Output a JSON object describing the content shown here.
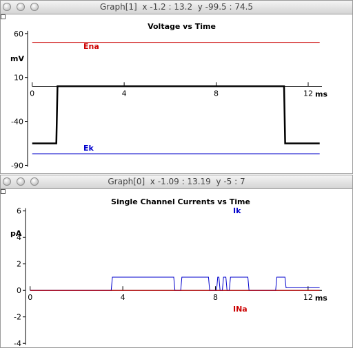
{
  "windows": [
    {
      "title_text": "Graph[1]  x -1.2 : 13.2  y -99.5 : 74.5",
      "chart_data": {
        "type": "line",
        "title": "Voltage vs Time",
        "xlabel": "ms",
        "ylabel": "mV",
        "xlim": [
          -0.2,
          12.6
        ],
        "ylim": [
          -92,
          63
        ],
        "xticks": [
          0,
          4,
          8,
          12
        ],
        "xtick_labels": [
          "0",
          "4",
          "8",
          "12"
        ],
        "yticks": [
          60,
          10,
          -40,
          -90
        ],
        "ytick_labels": [
          "60",
          "10",
          "-40",
          "-90"
        ],
        "series": [
          {
            "name": "Ena",
            "color": "#cc0000",
            "x": [
              0,
              12.5
            ],
            "y": [
              50,
              50
            ]
          },
          {
            "name": "Ek",
            "color": "#0000cc",
            "x": [
              0,
              12.5
            ],
            "y": [
              -77,
              -77
            ]
          },
          {
            "name": "",
            "color": "#000000",
            "x": [
              0,
              1.05,
              1.1,
              10.95,
              11.0,
              12.5
            ],
            "y": [
              -65,
              -65,
              0,
              0,
              -65,
              -65
            ]
          }
        ]
      }
    },
    {
      "title_text": "Graph[0]  x -1.09 : 13.19  y -5 : 7",
      "chart_data": {
        "type": "line",
        "title": "Single Channel Currents vs Time",
        "xlabel": "ms",
        "ylabel": "pA",
        "xlim": [
          -0.2,
          12.6
        ],
        "ylim": [
          -4.3,
          6.4
        ],
        "xticks": [
          0,
          4,
          8,
          12
        ],
        "xtick_labels": [
          "0",
          "4",
          "8",
          "12"
        ],
        "yticks": [
          6,
          4,
          2,
          0,
          -2,
          -4
        ],
        "ytick_labels": [
          "6",
          "4",
          "2",
          "0",
          "-2",
          "-4"
        ],
        "series": [
          {
            "name": "Ik",
            "color": "#0000cc",
            "x": [
              0,
              3.5,
              3.55,
              6.2,
              6.25,
              6.5,
              6.55,
              7.7,
              7.75,
              8.05,
              8.1,
              8.15,
              8.2,
              8.3,
              8.35,
              8.45,
              8.5,
              8.6,
              8.65,
              9.4,
              9.45,
              10.6,
              10.65,
              11.0,
              11.05,
              12.5
            ],
            "y": [
              0,
              0,
              1,
              1,
              0,
              0,
              1,
              1,
              0,
              0,
              1,
              1,
              0,
              0,
              1,
              1,
              0,
              0,
              1,
              1,
              0,
              0,
              1,
              1,
              0.2,
              0.2
            ]
          },
          {
            "name": "INa",
            "color": "#cc0000",
            "x": [
              0,
              12.5
            ],
            "y": [
              0,
              0
            ]
          }
        ]
      }
    }
  ]
}
